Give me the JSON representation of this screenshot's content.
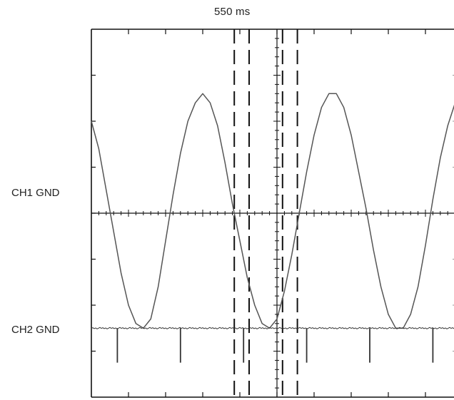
{
  "figure": {
    "time_label": "550 ms",
    "ch1_label": "CH1 GND",
    "ch2_label": "CH2 GND"
  },
  "chart_data": {
    "type": "line",
    "title": "550 ms",
    "xlabel": "",
    "ylabel": "",
    "grid": false,
    "x_divisions": 10,
    "y_divisions": 8,
    "xlim": [
      0,
      10
    ],
    "ylim": [
      -4,
      4
    ],
    "series": [
      {
        "name": "CH1 GND",
        "x": [
          0,
          0.2,
          0.4,
          0.6,
          0.8,
          1.0,
          1.2,
          1.4,
          1.6,
          1.8,
          2.0,
          2.2,
          2.4,
          2.6,
          2.8,
          3.0,
          3.2,
          3.4,
          3.6,
          3.8,
          4.0,
          4.2,
          4.4,
          4.6,
          4.8,
          5.0,
          5.2,
          5.4,
          5.6,
          5.8,
          6.0,
          6.2,
          6.4,
          6.6,
          6.8,
          7.0,
          7.2,
          7.4,
          7.6,
          7.8,
          8.0,
          8.2,
          8.4,
          8.6,
          8.8,
          9.0,
          9.2,
          9.4,
          9.6,
          9.8,
          10.0
        ],
        "y": [
          2.0,
          1.4,
          0.5,
          -0.4,
          -1.3,
          -2.0,
          -2.4,
          -2.5,
          -2.3,
          -1.6,
          -0.6,
          0.4,
          1.3,
          2.0,
          2.4,
          2.6,
          2.4,
          1.9,
          1.1,
          0.2,
          -0.6,
          -1.4,
          -2.0,
          -2.4,
          -2.5,
          -2.3,
          -1.7,
          -0.9,
          0.0,
          0.9,
          1.7,
          2.3,
          2.6,
          2.6,
          2.3,
          1.7,
          0.9,
          0.1,
          -0.8,
          -1.6,
          -2.2,
          -2.5,
          -2.5,
          -2.2,
          -1.6,
          -0.7,
          0.3,
          1.2,
          1.9,
          2.4,
          2.5
        ]
      },
      {
        "name": "CH2 GND",
        "baseline": -2.5,
        "spike_x": [
          0.7,
          2.4,
          4.1,
          5.8,
          7.5,
          9.2
        ],
        "spike_depth": 0.75
      }
    ],
    "cursors_x": [
      3.85,
      4.25,
      5.15,
      5.55
    ],
    "center_cursor_x": 5.0
  }
}
